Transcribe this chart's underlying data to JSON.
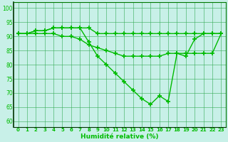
{
  "x": [
    0,
    1,
    2,
    3,
    4,
    5,
    6,
    7,
    8,
    9,
    10,
    11,
    12,
    13,
    14,
    15,
    16,
    17,
    18,
    19,
    20,
    21,
    22,
    23
  ],
  "line1": [
    91,
    91,
    92,
    92,
    93,
    93,
    93,
    93,
    93,
    91,
    91,
    91,
    91,
    91,
    91,
    91,
    91,
    91,
    91,
    91,
    91,
    91,
    91,
    91
  ],
  "line2": [
    91,
    91,
    92,
    92,
    93,
    93,
    93,
    93,
    88,
    83,
    80,
    77,
    74,
    71,
    68,
    66,
    69,
    67,
    84,
    83,
    89,
    91,
    91,
    91
  ],
  "line3": [
    91,
    91,
    91,
    91,
    91,
    90,
    90,
    89,
    87,
    86,
    85,
    84,
    83,
    83,
    83,
    83,
    83,
    84,
    84,
    84,
    84,
    84,
    84,
    91
  ],
  "line_color": "#00bb00",
  "bg_color": "#c8f0e8",
  "grid_color": "#33aa55",
  "xlabel": "Humidité relative (%)",
  "ylim": [
    58,
    102
  ],
  "xlim": [
    -0.5,
    23.5
  ],
  "yticks": [
    60,
    65,
    70,
    75,
    80,
    85,
    90,
    95,
    100
  ],
  "xticks": [
    0,
    1,
    2,
    3,
    4,
    5,
    6,
    7,
    8,
    9,
    10,
    11,
    12,
    13,
    14,
    15,
    16,
    17,
    18,
    19,
    20,
    21,
    22,
    23
  ]
}
